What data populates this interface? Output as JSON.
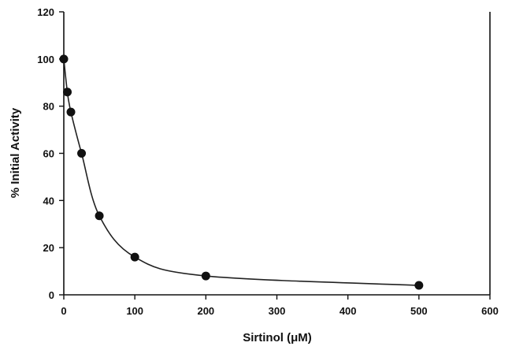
{
  "chart_data": {
    "type": "scatter",
    "title": "",
    "xlabel": "Sirtinol (μM)",
    "ylabel": "% Initial Activity",
    "xlim": [
      0,
      600
    ],
    "ylim": [
      0,
      120
    ],
    "x_ticks": [
      "0",
      "100",
      "200",
      "300",
      "400",
      "500",
      "600"
    ],
    "y_ticks": [
      "0",
      "20",
      "40",
      "60",
      "80",
      "100",
      "120"
    ],
    "grid": false,
    "series": [
      {
        "points": [
          {
            "x": 0,
            "y": 100
          },
          {
            "x": 5,
            "y": 86
          },
          {
            "x": 10,
            "y": 77.5
          },
          {
            "x": 25,
            "y": 60
          },
          {
            "x": 50,
            "y": 33.5
          },
          {
            "x": 100,
            "y": 16
          },
          {
            "x": 200,
            "y": 8
          },
          {
            "x": 500,
            "y": 4
          }
        ],
        "fit_curve": "smooth",
        "marker_color": "#111111",
        "line_color": "#222222"
      }
    ]
  }
}
